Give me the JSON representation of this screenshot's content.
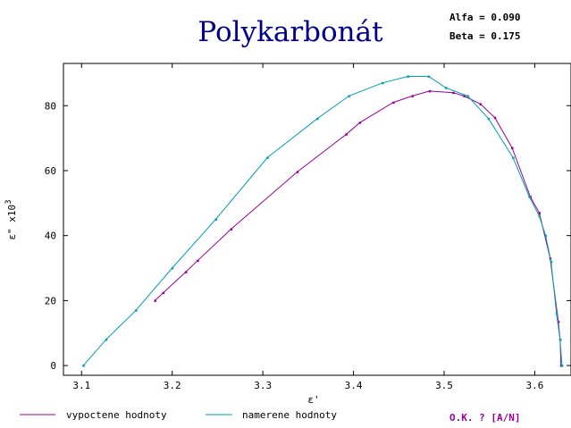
{
  "chart_data": {
    "type": "line",
    "title": "Polykarbonát",
    "params": [
      {
        "label": "Alfa",
        "value": "0.090"
      },
      {
        "label": "Beta",
        "value": "0.175"
      }
    ],
    "ylabel": "ɛ\" x10",
    "ylabel_exp": "3",
    "xlabel": "ɛ'",
    "xlim": [
      3.08,
      3.64
    ],
    "ylim": [
      -3,
      93
    ],
    "xticks": [
      3.1,
      3.2,
      3.3,
      3.4,
      3.5,
      3.6
    ],
    "xtick_labels": [
      "3.1",
      "3.2",
      "3.3",
      "3.4",
      "3.5",
      "3.6"
    ],
    "yticks": [
      0,
      20,
      40,
      60,
      80
    ],
    "ytick_labels": [
      "0",
      "20",
      "40",
      "60",
      "80"
    ],
    "series": [
      {
        "name": "vypoctene hodnoty",
        "color": "#990099",
        "points": [
          [
            3.181,
            20.0
          ],
          [
            3.19,
            22.4
          ],
          [
            3.215,
            28.8
          ],
          [
            3.228,
            32.3
          ],
          [
            3.265,
            42.0
          ],
          [
            3.338,
            59.6
          ],
          [
            3.392,
            71.2
          ],
          [
            3.407,
            74.8
          ],
          [
            3.444,
            81.0
          ],
          [
            3.465,
            83.0
          ],
          [
            3.484,
            84.5
          ],
          [
            3.51,
            84.0
          ],
          [
            3.522,
            83.0
          ],
          [
            3.54,
            80.5
          ],
          [
            3.556,
            76.3
          ],
          [
            3.575,
            67.0
          ],
          [
            3.595,
            52.0
          ],
          [
            3.605,
            47.0
          ],
          [
            3.617,
            33.0
          ],
          [
            3.626,
            13.5
          ],
          [
            3.628,
            8.0
          ],
          [
            3.629,
            0.0
          ]
        ]
      },
      {
        "name": "namerene hodnoty",
        "color": "#00a0b0",
        "points": [
          [
            3.102,
            0.0
          ],
          [
            3.127,
            8.0
          ],
          [
            3.16,
            17.0
          ],
          [
            3.2,
            30.0
          ],
          [
            3.248,
            45.0
          ],
          [
            3.305,
            64.0
          ],
          [
            3.36,
            76.0
          ],
          [
            3.395,
            83.0
          ],
          [
            3.432,
            87.0
          ],
          [
            3.46,
            89.0
          ],
          [
            3.483,
            89.0
          ],
          [
            3.502,
            85.5
          ],
          [
            3.526,
            83.0
          ],
          [
            3.549,
            76.0
          ],
          [
            3.576,
            64.0
          ],
          [
            3.594,
            52.0
          ],
          [
            3.605,
            46.0
          ],
          [
            3.612,
            40.0
          ],
          [
            3.618,
            32.0
          ],
          [
            3.624,
            16.0
          ],
          [
            3.628,
            8.0
          ],
          [
            3.63,
            0.0
          ]
        ]
      }
    ],
    "prompt": "O.K. ? [A/N]",
    "colors": {
      "title": "#00008b",
      "axis": "#000000",
      "prompt": "#990099"
    }
  }
}
